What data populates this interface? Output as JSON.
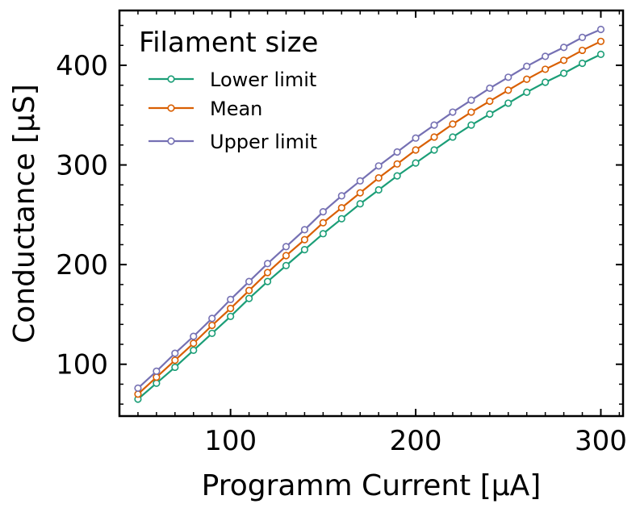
{
  "chart_data": {
    "type": "line",
    "title": "",
    "xlabel": "Programm Current [µA]",
    "ylabel": "Conductance [µS]",
    "xlim": [
      40,
      312
    ],
    "ylim": [
      48,
      455
    ],
    "xticks": [
      100,
      200,
      300
    ],
    "yticks": [
      100,
      200,
      300,
      400
    ],
    "x_minor_step": 10,
    "y_minor_step": 20,
    "grid": false,
    "legend": {
      "title": "Filament size",
      "position": "top-left"
    },
    "x": [
      50,
      60,
      70,
      80,
      90,
      100,
      110,
      120,
      130,
      140,
      150,
      160,
      170,
      180,
      190,
      200,
      210,
      220,
      230,
      240,
      250,
      260,
      270,
      280,
      290,
      300
    ],
    "series": [
      {
        "name": "Lower limit",
        "color": "#1b9e77",
        "values": [
          65,
          81,
          97,
          114,
          131,
          148,
          166,
          183,
          199,
          215,
          231,
          246,
          261,
          275,
          289,
          302,
          315,
          328,
          340,
          351,
          362,
          373,
          383,
          392,
          402,
          411
        ]
      },
      {
        "name": "Mean",
        "color": "#d95f02",
        "values": [
          70,
          87,
          104,
          121,
          139,
          156,
          174,
          192,
          209,
          225,
          242,
          257,
          272,
          287,
          301,
          315,
          328,
          341,
          353,
          364,
          375,
          386,
          396,
          405,
          415,
          424
        ]
      },
      {
        "name": "Upper limit",
        "color": "#7570b3",
        "values": [
          76,
          93,
          111,
          128,
          146,
          165,
          183,
          201,
          218,
          235,
          253,
          269,
          284,
          299,
          313,
          327,
          340,
          353,
          365,
          377,
          388,
          399,
          409,
          418,
          428,
          436
        ]
      }
    ]
  }
}
